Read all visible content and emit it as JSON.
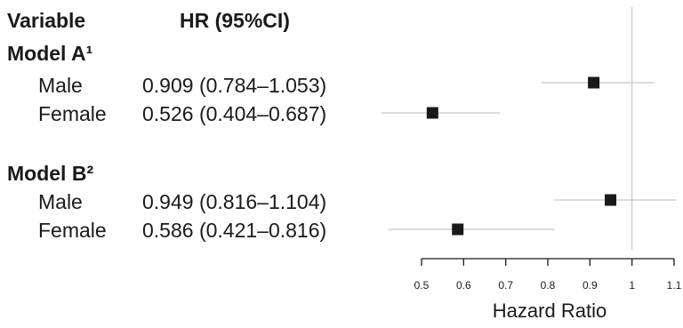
{
  "table": {
    "header_variable": "Variable",
    "header_hr": "HR (95%CI)",
    "groups": [
      {
        "label": "Model A¹",
        "rows": [
          {
            "label": "Male",
            "hr_text": "0.909 (0.784–1.053)"
          },
          {
            "label": "Female",
            "hr_text": "0.526 (0.404–0.687)"
          }
        ]
      },
      {
        "label": "Model B²",
        "rows": [
          {
            "label": "Male",
            "hr_text": "0.949 (0.816–1.104)"
          },
          {
            "label": "Female",
            "hr_text": "0.586 (0.421–0.816)"
          }
        ]
      }
    ]
  },
  "chart_data": {
    "type": "scatter",
    "subtype": "forest",
    "xlabel": "Hazard Ratio",
    "xlim": [
      0.5,
      1.1
    ],
    "xticks": [
      0.5,
      0.6,
      0.7,
      0.8,
      0.9,
      1,
      1.1
    ],
    "reference_line": 1,
    "points": [
      {
        "group": "Model A¹",
        "label": "Male",
        "hr": 0.909,
        "lower": 0.784,
        "upper": 1.053
      },
      {
        "group": "Model A¹",
        "label": "Female",
        "hr": 0.526,
        "lower": 0.404,
        "upper": 0.687
      },
      {
        "group": "Model B²",
        "label": "Male",
        "hr": 0.949,
        "lower": 0.816,
        "upper": 1.104
      },
      {
        "group": "Model B²",
        "label": "Female",
        "hr": 0.586,
        "lower": 0.421,
        "upper": 0.816
      }
    ],
    "colors": {
      "marker": "#1a1a1a",
      "ci_line": "#c8c8c8",
      "reference": "#c8c8c8",
      "axis": "#1a1a1a"
    }
  }
}
